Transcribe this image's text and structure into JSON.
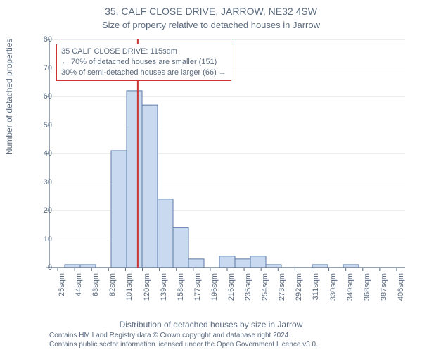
{
  "title_main": "35, CALF CLOSE DRIVE, JARROW, NE32 4SW",
  "title_sub": "Size of property relative to detached houses in Jarrow",
  "y_axis_label": "Number of detached properties",
  "x_axis_label": "Distribution of detached houses by size in Jarrow",
  "attribution_line1": "Contains HM Land Registry data © Crown copyright and database right 2024.",
  "attribution_line2": "Contains public sector information licensed under the Open Government Licence v3.0.",
  "chart": {
    "type": "histogram",
    "ylim": [
      0,
      80
    ],
    "ytick_step": 10,
    "yticks": [
      0,
      10,
      20,
      30,
      40,
      50,
      60,
      70,
      80
    ],
    "xticks": [
      "25sqm",
      "44sqm",
      "63sqm",
      "82sqm",
      "101sqm",
      "120sqm",
      "139sqm",
      "158sqm",
      "177sqm",
      "196sqm",
      "216sqm",
      "235sqm",
      "254sqm",
      "273sqm",
      "292sqm",
      "311sqm",
      "330sqm",
      "349sqm",
      "368sqm",
      "387sqm",
      "406sqm"
    ],
    "values": [
      0,
      1,
      1,
      0,
      41,
      62,
      57,
      24,
      14,
      3,
      0,
      4,
      3,
      4,
      1,
      0,
      0,
      1,
      0,
      1,
      0,
      0,
      0
    ],
    "bar_fill": "#c9daf0",
    "bar_stroke": "#5b7aa8",
    "axis_color": "#5b6b7f",
    "grid_color": "#d9d9d9",
    "background_color": "#ffffff",
    "tick_fontsize": 11,
    "label_fontsize": 12,
    "marker": {
      "value": 115,
      "color": "#cc3333",
      "line_width": 2
    },
    "annotation": {
      "line1": "35 CALF CLOSE DRIVE: 115sqm",
      "line2": "← 70% of detached houses are smaller (151)",
      "line3": "30% of semi-detached houses are larger (66) →",
      "border_color": "#cc3333",
      "bg": "#ffffff"
    }
  }
}
